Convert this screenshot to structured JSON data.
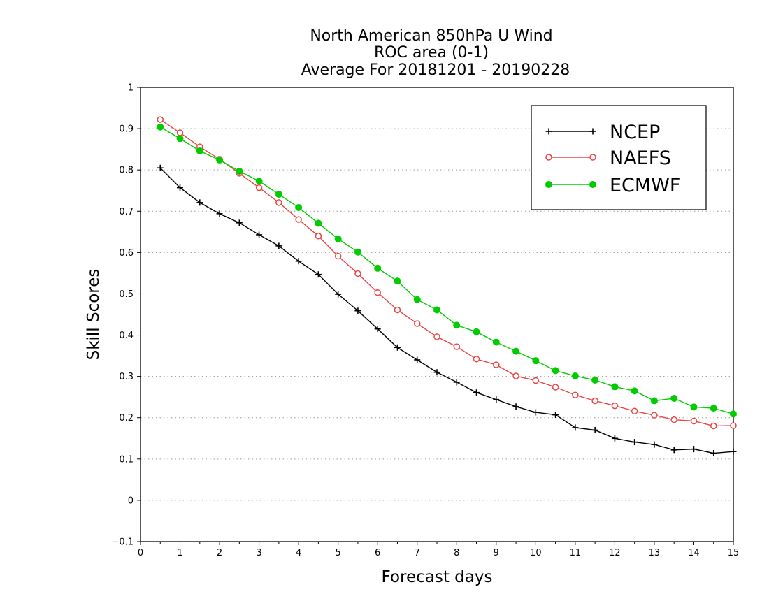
{
  "chart_data": {
    "type": "line",
    "title_lines": [
      "North American 850hPa U Wind",
      "ROC area (0-1)",
      "Average For 20181201 - 20190228"
    ],
    "xlabel": "Forecast days",
    "ylabel": "Skill Scores",
    "xlim": [
      0,
      15
    ],
    "ylim": [
      -0.1,
      1
    ],
    "x_ticks": [
      "0",
      "1",
      "2",
      "3",
      "4",
      "5",
      "6",
      "7",
      "8",
      "9",
      "10",
      "11",
      "12",
      "13",
      "14",
      "15"
    ],
    "y_ticks": [
      "−0.1",
      "0",
      "0.1",
      "0.2",
      "0.3",
      "0.4",
      "0.5",
      "0.6",
      "0.7",
      "0.8",
      "0.9",
      "1"
    ],
    "grid": "horizontal dotted",
    "legend_position": "top-right",
    "x": [
      0.5,
      1,
      1.5,
      2,
      2.5,
      3,
      3.5,
      4,
      4.5,
      5,
      5.5,
      6,
      6.5,
      7,
      7.5,
      8,
      8.5,
      9,
      9.5,
      10,
      10.5,
      11,
      11.5,
      12,
      12.5,
      13,
      13.5,
      14,
      14.5,
      15
    ],
    "series": [
      {
        "name": "NCEP",
        "color": "#000000",
        "marker": "plus",
        "values": [
          0.805,
          0.757,
          0.721,
          0.694,
          0.672,
          0.643,
          0.616,
          0.579,
          0.547,
          0.499,
          0.459,
          0.415,
          0.37,
          0.34,
          0.31,
          0.286,
          0.261,
          0.244,
          0.227,
          0.213,
          0.207,
          0.176,
          0.17,
          0.15,
          0.141,
          0.135,
          0.122,
          0.124,
          0.114,
          0.118
        ]
      },
      {
        "name": "NAEFS",
        "color": "#e84545",
        "marker": "open-circle",
        "values": [
          0.922,
          0.89,
          0.856,
          0.826,
          0.792,
          0.757,
          0.721,
          0.68,
          0.64,
          0.591,
          0.549,
          0.503,
          0.461,
          0.428,
          0.396,
          0.372,
          0.342,
          0.328,
          0.301,
          0.29,
          0.274,
          0.255,
          0.241,
          0.229,
          0.216,
          0.206,
          0.195,
          0.192,
          0.18,
          0.181
        ]
      },
      {
        "name": "ECMWF",
        "color": "#00cc00",
        "marker": "filled-circle",
        "values": [
          0.904,
          0.876,
          0.846,
          0.824,
          0.797,
          0.773,
          0.741,
          0.709,
          0.671,
          0.633,
          0.601,
          0.562,
          0.531,
          0.486,
          0.461,
          0.424,
          0.408,
          0.383,
          0.361,
          0.338,
          0.314,
          0.301,
          0.291,
          0.275,
          0.265,
          0.241,
          0.247,
          0.226,
          0.223,
          0.209
        ]
      }
    ]
  }
}
